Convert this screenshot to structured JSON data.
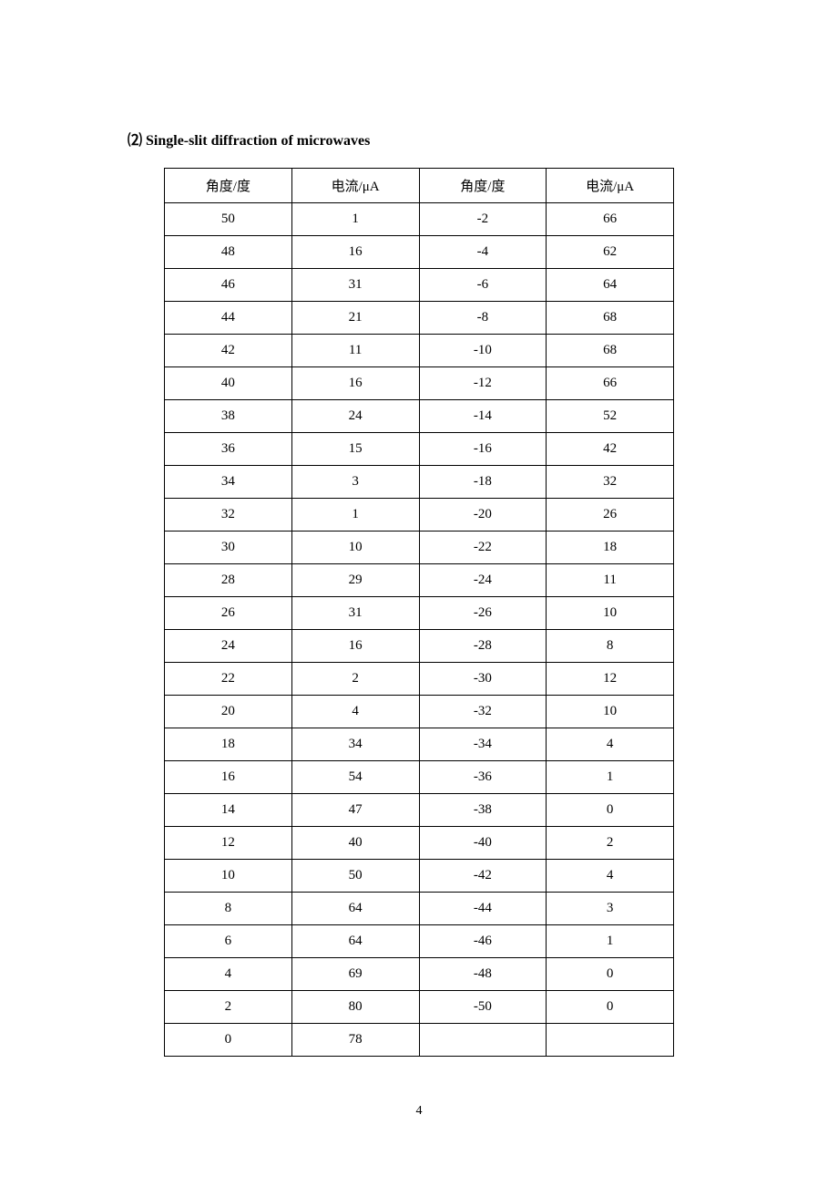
{
  "section_title": "⑵ Single-slit diffraction of microwaves",
  "page_number": "4",
  "table": {
    "columns": [
      "角度/度",
      "电流/μA",
      "角度/度",
      "电流/μA"
    ],
    "rows": [
      [
        "50",
        "1",
        "-2",
        "66"
      ],
      [
        "48",
        "16",
        "-4",
        "62"
      ],
      [
        "46",
        "31",
        "-6",
        "64"
      ],
      [
        "44",
        "21",
        "-8",
        "68"
      ],
      [
        "42",
        "11",
        "-10",
        "68"
      ],
      [
        "40",
        "16",
        "-12",
        "66"
      ],
      [
        "38",
        "24",
        "-14",
        "52"
      ],
      [
        "36",
        "15",
        "-16",
        "42"
      ],
      [
        "34",
        "3",
        "-18",
        "32"
      ],
      [
        "32",
        "1",
        "-20",
        "26"
      ],
      [
        "30",
        "10",
        "-22",
        "18"
      ],
      [
        "28",
        "29",
        "-24",
        "11"
      ],
      [
        "26",
        "31",
        "-26",
        "10"
      ],
      [
        "24",
        "16",
        "-28",
        "8"
      ],
      [
        "22",
        "2",
        "-30",
        "12"
      ],
      [
        "20",
        "4",
        "-32",
        "10"
      ],
      [
        "18",
        "34",
        "-34",
        "4"
      ],
      [
        "16",
        "54",
        "-36",
        "1"
      ],
      [
        "14",
        "47",
        "-38",
        "0"
      ],
      [
        "12",
        "40",
        "-40",
        "2"
      ],
      [
        "10",
        "50",
        "-42",
        "4"
      ],
      [
        "8",
        "64",
        "-44",
        "3"
      ],
      [
        "6",
        "64",
        "-46",
        "1"
      ],
      [
        "4",
        "69",
        "-48",
        "0"
      ],
      [
        "2",
        "80",
        "-50",
        "0"
      ],
      [
        "0",
        "78",
        "",
        ""
      ]
    ],
    "column_widths": [
      "25%",
      "25%",
      "25%",
      "25%"
    ],
    "border_color": "#000000",
    "text_color": "#000000",
    "header_fontsize": 15,
    "cell_fontsize": 15
  },
  "styling": {
    "background_color": "#ffffff",
    "title_fontsize": 16,
    "title_fontweight": "bold"
  }
}
